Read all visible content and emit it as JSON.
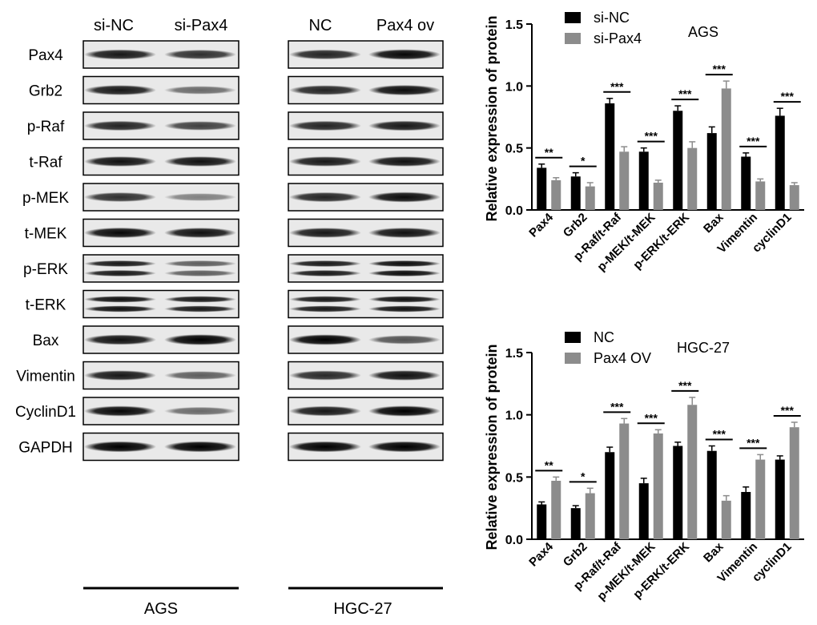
{
  "blots": {
    "left_panel": {
      "lane_labels": [
        "si-NC",
        "si-Pax4"
      ],
      "bottom_label": "AGS"
    },
    "right_panel": {
      "lane_labels": [
        "NC",
        "Pax4 ov"
      ],
      "bottom_label": "HGC-27"
    },
    "row_labels": [
      "Pax4",
      "Grb2",
      "p-Raf",
      "t-Raf",
      "p-MEK",
      "t-MEK",
      "p-ERK",
      "t-ERK",
      "Bax",
      "Vimentin",
      "CyclinD1",
      "GAPDH"
    ],
    "band_intensity_left": [
      [
        0.85,
        0.75
      ],
      [
        0.85,
        0.5
      ],
      [
        0.8,
        0.68
      ],
      [
        0.88,
        0.88
      ],
      [
        0.75,
        0.4
      ],
      [
        0.92,
        0.88
      ],
      [
        0.85,
        0.55
      ],
      [
        0.88,
        0.85
      ],
      [
        0.88,
        1.0
      ],
      [
        0.85,
        0.55
      ],
      [
        0.92,
        0.5
      ],
      [
        1.0,
        1.0
      ]
    ],
    "band_intensity_right": [
      [
        0.8,
        0.92
      ],
      [
        0.8,
        0.9
      ],
      [
        0.8,
        0.85
      ],
      [
        0.85,
        0.88
      ],
      [
        0.8,
        0.9
      ],
      [
        0.85,
        0.88
      ],
      [
        0.85,
        0.9
      ],
      [
        0.85,
        0.88
      ],
      [
        0.95,
        0.6
      ],
      [
        0.78,
        0.88
      ],
      [
        0.85,
        0.98
      ],
      [
        1.0,
        1.0
      ]
    ],
    "double_band_rows": [
      "p-ERK",
      "t-ERK"
    ]
  },
  "chart_data": [
    {
      "type": "bar",
      "title": "AGS",
      "ylabel": "Relative  expression of protein",
      "ylim": [
        0,
        1.5
      ],
      "yticks": [
        "0.0",
        "0.5",
        "1.0",
        "1.5"
      ],
      "categories": [
        "Pax4",
        "Grb2",
        "p-Raf/t-Raf",
        "p-MEK/t-MEK",
        "p-ERK/t-ERK",
        "Bax",
        "Vimentin",
        "cyclinD1"
      ],
      "series": [
        {
          "name": "si-NC",
          "color": "#000000",
          "values": [
            0.34,
            0.27,
            0.86,
            0.47,
            0.8,
            0.62,
            0.43,
            0.76
          ],
          "errors": [
            0.03,
            0.03,
            0.04,
            0.03,
            0.04,
            0.05,
            0.03,
            0.06
          ]
        },
        {
          "name": "si-Pax4",
          "color": "#8c8c8c",
          "values": [
            0.24,
            0.19,
            0.47,
            0.22,
            0.5,
            0.98,
            0.23,
            0.2
          ],
          "errors": [
            0.02,
            0.03,
            0.04,
            0.02,
            0.05,
            0.06,
            0.02,
            0.02
          ]
        }
      ],
      "significance": [
        "**",
        "*",
        "***",
        "***",
        "***",
        "***",
        "***",
        "***"
      ],
      "legend_position": "top-left"
    },
    {
      "type": "bar",
      "title": "HGC-27",
      "ylabel": "Relative  expression of protein",
      "ylim": [
        0,
        1.5
      ],
      "yticks": [
        "0.0",
        "0.5",
        "1.0",
        "1.5"
      ],
      "categories": [
        "Pax4",
        "Grb2",
        "p-Raf/t-Raf",
        "p-MEK/t-MEK",
        "p-ERK/t-ERK",
        "Bax",
        "Vimentin",
        "cyclinD1"
      ],
      "series": [
        {
          "name": "NC",
          "color": "#000000",
          "values": [
            0.28,
            0.25,
            0.7,
            0.45,
            0.75,
            0.71,
            0.38,
            0.64
          ],
          "errors": [
            0.02,
            0.02,
            0.04,
            0.04,
            0.03,
            0.04,
            0.04,
            0.03
          ]
        },
        {
          "name": "Pax4 OV",
          "color": "#8c8c8c",
          "values": [
            0.47,
            0.37,
            0.93,
            0.85,
            1.08,
            0.31,
            0.64,
            0.9
          ],
          "errors": [
            0.03,
            0.04,
            0.04,
            0.03,
            0.06,
            0.04,
            0.04,
            0.04
          ]
        }
      ],
      "significance": [
        "**",
        "*",
        "***",
        "***",
        "***",
        "***",
        "***",
        "***"
      ],
      "legend_position": "top-left"
    }
  ]
}
